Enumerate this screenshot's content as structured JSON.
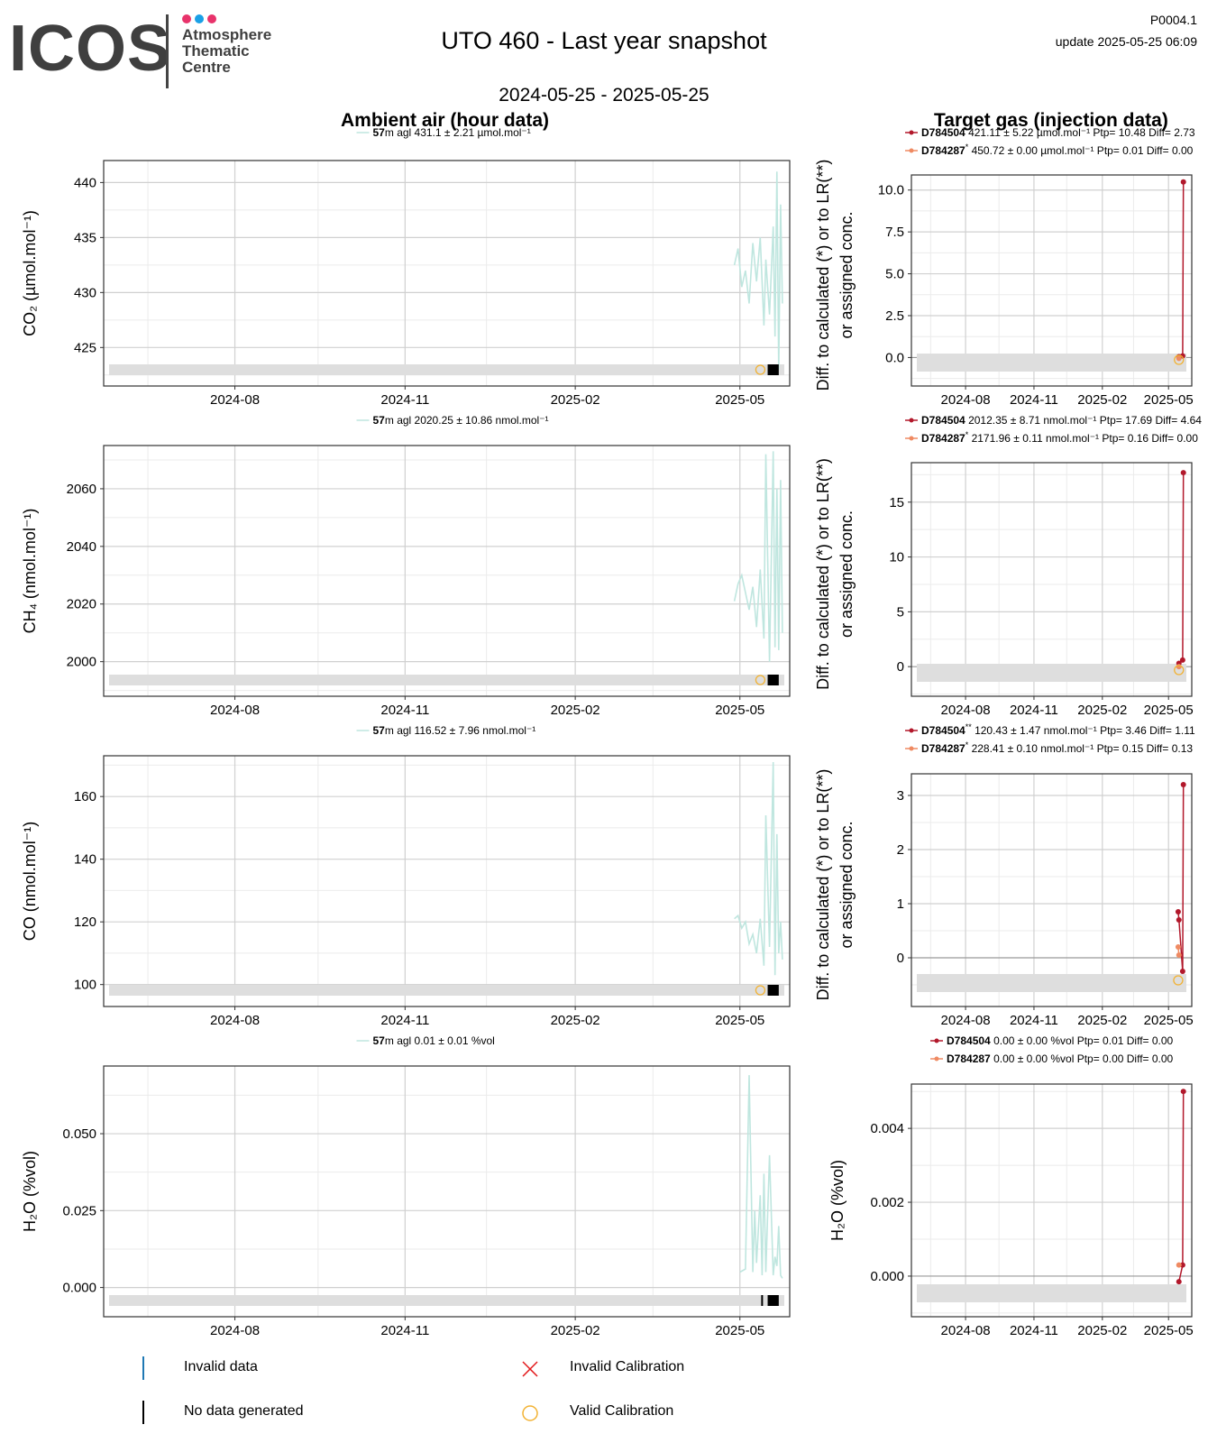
{
  "header": {
    "logo_text": "ICOS",
    "logo_sub": [
      "Atmosphere",
      "Thematic",
      "Centre"
    ],
    "logo_dot_colors": [
      "#e8336b",
      "#1aa0e6",
      "#e8336b"
    ],
    "title": "UTO 460 - Last year snapshot",
    "page_id": "P0004.1",
    "update": "update  2025-05-25 06:09",
    "date_range": "2024-05-25 - 2025-05-25"
  },
  "sections": {
    "ambient_title": "Ambient air (hour data)",
    "target_title": "Target gas (injection data)"
  },
  "colors": {
    "ambient_line": "#bfe6df",
    "target1": "#b2182b",
    "target2": "#ef8a62",
    "valid_cal": "#f2b233",
    "invalid_cal": "#e31a1c",
    "invalid_data": "#1f78b4",
    "flag_band": "#dedede"
  },
  "legend": {
    "invalid_data": "Invalid data",
    "no_data": "No data generated",
    "invalid_cal": "Invalid Calibration",
    "valid_cal": "Valid Calibration"
  },
  "target_ylabel": [
    "Diff. to calculated (*) or to LR(**)",
    "or assigned conc."
  ],
  "chart_data": [
    {
      "type": "line",
      "panel": "ambient",
      "gas": "CO2",
      "ylabel": "CO₂ (µmol.mol⁻¹)",
      "legend": {
        "height": "57",
        "unit_text": "m agl 431.1 ± 2.21 µmol.mol⁻¹"
      },
      "xlim": [
        "2024-05-25",
        "2025-05-25"
      ],
      "xticks": [
        "2024-08",
        "2024-11",
        "2025-02",
        "2025-05"
      ],
      "ylim": [
        421.5,
        442
      ],
      "yticks": [
        425,
        430,
        435,
        440
      ],
      "ytick_labels": [
        "425",
        "430",
        "435",
        "440"
      ],
      "series": [
        {
          "x": [
            "2025-04-28",
            "2025-04-30",
            "2025-05-02",
            "2025-05-04",
            "2025-05-06",
            "2025-05-08",
            "2025-05-10",
            "2025-05-12",
            "2025-05-14",
            "2025-05-15",
            "2025-05-17",
            "2025-05-19",
            "2025-05-20",
            "2025-05-21",
            "2025-05-22",
            "2025-05-23",
            "2025-05-24"
          ],
          "y": [
            432.5,
            434,
            430.5,
            432,
            429,
            434.5,
            431,
            435,
            427,
            433,
            428,
            436,
            426,
            441,
            423,
            438,
            429
          ]
        }
      ],
      "valid_cal_date": "2025-05-14",
      "no_data_block": [
        "2025-05-16",
        "2025-05-22"
      ]
    },
    {
      "type": "line",
      "panel": "target",
      "gas": "CO2",
      "legend": [
        {
          "id": "D784504",
          "sup": "",
          "text": "421.11 ± 5.22 µmol.mol⁻¹ Ptp= 10.48 Diff= 2.73"
        },
        {
          "id": "D784287",
          "sup": "*",
          "text": "450.72 ± 0.00 µmol.mol⁻¹ Ptp= 0.01 Diff= 0.00"
        }
      ],
      "xlim": [
        "2024-05-25",
        "2025-05-25"
      ],
      "xticks": [
        "2024-08",
        "2024-11",
        "2025-02",
        "2025-05"
      ],
      "ylim": [
        -1.7,
        10.9
      ],
      "yticks": [
        0,
        2.5,
        5,
        7.5,
        10
      ],
      "ytick_labels": [
        "0.0",
        "2.5",
        "5.0",
        "7.5",
        "10.0"
      ],
      "series": [
        {
          "id": "D784504",
          "x": [
            "2025-05-15",
            "2025-05-20",
            "2025-05-21"
          ],
          "y": [
            0.05,
            0.1,
            10.48
          ]
        },
        {
          "id": "D784287",
          "x": [
            "2025-05-15"
          ],
          "y": [
            -0.05
          ]
        }
      ],
      "valid_cal_date": "2025-05-15"
    },
    {
      "type": "line",
      "panel": "ambient",
      "gas": "CH4",
      "ylabel": "CH₄ (nmol.mol⁻¹)",
      "legend": {
        "height": "57",
        "unit_text": "m agl 2020.25 ± 10.86 nmol.mol⁻¹"
      },
      "xlim": [
        "2024-05-25",
        "2025-05-25"
      ],
      "xticks": [
        "2024-08",
        "2024-11",
        "2025-02",
        "2025-05"
      ],
      "ylim": [
        1988,
        2075
      ],
      "yticks": [
        2000,
        2020,
        2040,
        2060
      ],
      "ytick_labels": [
        "2000",
        "2020",
        "2040",
        "2060"
      ],
      "series": [
        {
          "x": [
            "2025-04-28",
            "2025-04-30",
            "2025-05-02",
            "2025-05-04",
            "2025-05-06",
            "2025-05-08",
            "2025-05-10",
            "2025-05-12",
            "2025-05-14",
            "2025-05-15",
            "2025-05-17",
            "2025-05-19",
            "2025-05-20",
            "2025-05-21",
            "2025-05-22",
            "2025-05-23",
            "2025-05-24"
          ],
          "y": [
            2021,
            2027,
            2030,
            2024,
            2018,
            2026,
            2012,
            2032,
            2008,
            2072,
            2000,
            2073,
            2005,
            2060,
            2004,
            2063,
            2010
          ]
        }
      ],
      "valid_cal_date": "2025-05-14",
      "no_data_block": [
        "2025-05-16",
        "2025-05-22"
      ]
    },
    {
      "type": "line",
      "panel": "target",
      "gas": "CH4",
      "legend": [
        {
          "id": "D784504",
          "sup": "",
          "text": "2012.35 ± 8.71 nmol.mol⁻¹ Ptp= 17.69 Diff= 4.64"
        },
        {
          "id": "D784287",
          "sup": "*",
          "text": "2171.96 ± 0.11 nmol.mol⁻¹ Ptp= 0.16 Diff= 0.00"
        }
      ],
      "xlim": [
        "2024-05-25",
        "2025-05-25"
      ],
      "xticks": [
        "2024-08",
        "2024-11",
        "2025-02",
        "2025-05"
      ],
      "ylim": [
        -2.7,
        18.6
      ],
      "yticks": [
        0,
        5,
        10,
        15
      ],
      "ytick_labels": [
        "0",
        "5",
        "10",
        "15"
      ],
      "series": [
        {
          "id": "D784504",
          "x": [
            "2025-05-15",
            "2025-05-20",
            "2025-05-21"
          ],
          "y": [
            0.3,
            0.6,
            17.69
          ]
        },
        {
          "id": "D784287",
          "x": [
            "2025-05-15"
          ],
          "y": [
            0.0
          ]
        }
      ],
      "valid_cal_date": "2025-05-15"
    },
    {
      "type": "line",
      "panel": "ambient",
      "gas": "CO",
      "ylabel": "CO (nmol.mol⁻¹)",
      "legend": {
        "height": "57",
        "unit_text": "m agl 116.52 ± 7.96 nmol.mol⁻¹"
      },
      "xlim": [
        "2024-05-25",
        "2025-05-25"
      ],
      "xticks": [
        "2024-08",
        "2024-11",
        "2025-02",
        "2025-05"
      ],
      "ylim": [
        93,
        173
      ],
      "yticks": [
        100,
        120,
        140,
        160
      ],
      "ytick_labels": [
        "100",
        "120",
        "140",
        "160"
      ],
      "series": [
        {
          "x": [
            "2025-04-28",
            "2025-04-30",
            "2025-05-02",
            "2025-05-04",
            "2025-05-06",
            "2025-05-08",
            "2025-05-10",
            "2025-05-12",
            "2025-05-14",
            "2025-05-15",
            "2025-05-17",
            "2025-05-19",
            "2025-05-20",
            "2025-05-21",
            "2025-05-22",
            "2025-05-23",
            "2025-05-24"
          ],
          "y": [
            121,
            122,
            118,
            120,
            113,
            116,
            110,
            121,
            106,
            154,
            112,
            171,
            103,
            148,
            110,
            120,
            108
          ]
        }
      ],
      "valid_cal_date": "2025-05-14",
      "no_data_block": [
        "2025-05-16",
        "2025-05-22"
      ]
    },
    {
      "type": "line",
      "panel": "target",
      "gas": "CO",
      "legend": [
        {
          "id": "D784504",
          "sup": "**",
          "text": "120.43 ± 1.47 nmol.mol⁻¹ Ptp= 3.46 Diff= 1.11"
        },
        {
          "id": "D784287",
          "sup": "*",
          "text": "228.41 ± 0.10 nmol.mol⁻¹ Ptp= 0.15 Diff= 0.13"
        }
      ],
      "xlim": [
        "2024-05-25",
        "2025-05-25"
      ],
      "xticks": [
        "2024-08",
        "2024-11",
        "2025-02",
        "2025-05"
      ],
      "ylim": [
        -0.9,
        3.4
      ],
      "yticks": [
        0,
        1,
        2,
        3
      ],
      "ytick_labels": [
        "0",
        "1",
        "2",
        "3"
      ],
      "series": [
        {
          "id": "D784504",
          "x": [
            "2025-05-14",
            "2025-05-15",
            "2025-05-20",
            "2025-05-21"
          ],
          "y": [
            0.85,
            0.7,
            -0.25,
            3.2
          ]
        },
        {
          "id": "D784287",
          "x": [
            "2025-05-14",
            "2025-05-15"
          ],
          "y": [
            0.2,
            0.05
          ]
        }
      ],
      "valid_cal_date": "2025-05-14"
    },
    {
      "type": "line",
      "panel": "ambient",
      "gas": "H2O",
      "ylabel": "H₂O (%vol)",
      "legend": {
        "height": "57",
        "unit_text": "m agl 0.01 ± 0.01 %vol"
      },
      "xlim": [
        "2024-05-25",
        "2025-05-25"
      ],
      "xticks": [
        "2024-08",
        "2024-11",
        "2025-02",
        "2025-05"
      ],
      "ylim": [
        -0.0095,
        0.072
      ],
      "yticks": [
        0.0,
        0.025,
        0.05
      ],
      "ytick_labels": [
        "0.000",
        "0.025",
        "0.050"
      ],
      "series": [
        {
          "x": [
            "2025-05-01",
            "2025-05-04",
            "2025-05-06",
            "2025-05-08",
            "2025-05-09",
            "2025-05-10",
            "2025-05-12",
            "2025-05-13",
            "2025-05-14",
            "2025-05-15",
            "2025-05-17",
            "2025-05-19",
            "2025-05-20",
            "2025-05-21",
            "2025-05-22",
            "2025-05-23",
            "2025-05-24"
          ],
          "y": [
            0.005,
            0.006,
            0.069,
            0.005,
            0.025,
            0.008,
            0.03,
            0.004,
            0.037,
            0.005,
            0.043,
            0.004,
            0.01,
            0.007,
            0.02,
            0.004,
            0.003
          ]
        }
      ],
      "no_data_mark": "2025-05-13",
      "no_data_block": [
        "2025-05-16",
        "2025-05-22"
      ]
    },
    {
      "type": "line",
      "panel": "target",
      "gas": "H2O",
      "ylabel": "H₂O (%vol)",
      "legend": [
        {
          "id": "D784504",
          "sup": "",
          "text": "0.00 ± 0.00 %vol Ptp= 0.01 Diff= 0.00"
        },
        {
          "id": "D784287",
          "sup": "",
          "text": "0.00 ± 0.00 %vol Ptp= 0.00 Diff= 0.00"
        }
      ],
      "xlim": [
        "2024-05-25",
        "2025-05-25"
      ],
      "xticks": [
        "2024-08",
        "2024-11",
        "2025-02",
        "2025-05"
      ],
      "ylim": [
        -0.0011,
        0.0052
      ],
      "yticks": [
        0.0,
        0.002,
        0.004
      ],
      "ytick_labels": [
        "0.000",
        "0.002",
        "0.004"
      ],
      "series": [
        {
          "id": "D784504",
          "x": [
            "2025-05-15",
            "2025-05-20",
            "2025-05-21"
          ],
          "y": [
            -0.00015,
            0.0003,
            0.005
          ]
        },
        {
          "id": "D784287",
          "x": [
            "2025-05-15"
          ],
          "y": [
            0.0003
          ]
        }
      ]
    }
  ]
}
